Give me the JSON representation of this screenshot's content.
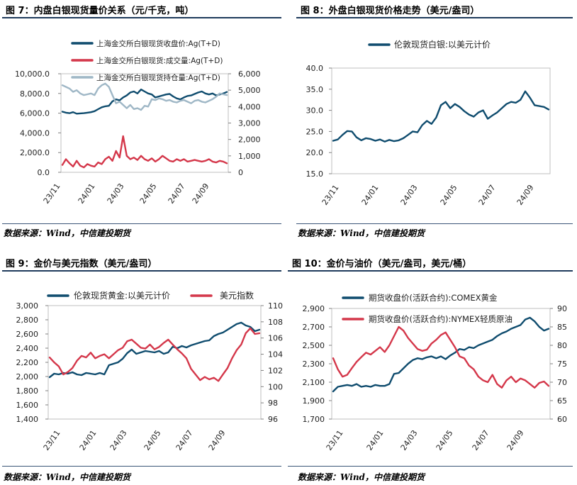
{
  "panels": [
    {
      "title": "图 7：内盘白银现货量价关系（元/千克，吨）",
      "source": "数据来源：Wind，中信建投期货"
    },
    {
      "title": "图 8：外盘白银现货价格走势（美元/盎司）",
      "source": "数据来源：Wind，中信建投期货"
    },
    {
      "title": "图 9：金价与美元指数（美元/盎司）",
      "source": "数据来源：Wind，中信建投期货"
    },
    {
      "title": "图 10：金价与油价（美元/盎司，美元/桶）",
      "source": "数据来源：Wind，中信建投期货"
    }
  ],
  "colors": {
    "navy": "#0f4c6e",
    "red": "#d4374a",
    "gray": "#9fb7c6",
    "rule": "#1f3b5c"
  },
  "chart_data": [
    {
      "type": "line",
      "title": "图 7：内盘白银现货量价关系（元/千克，吨）",
      "x_ticks": [
        "23/11",
        "24/01",
        "24/03",
        "24/05",
        "24/07",
        "24/09"
      ],
      "y_left": {
        "range": [
          0,
          10000
        ],
        "ticks": [
          "0.0",
          "2,000.0",
          "4,000.0",
          "6,000.0",
          "8,000.0",
          "10,000.0"
        ]
      },
      "y_right": {
        "range": [
          0,
          6000
        ],
        "ticks": [
          "0",
          "1,000",
          "2,000",
          "3,000",
          "4,000",
          "5,000",
          "6,000"
        ]
      },
      "series": [
        {
          "name": "上海金交所白银现货收盘价:Ag(T+D)",
          "axis": "left",
          "color": "#0f4c6e",
          "values": [
            6150,
            6050,
            6000,
            6100,
            5950,
            5980,
            6000,
            6050,
            6100,
            6200,
            6400,
            6600,
            6700,
            6750,
            7200,
            7400,
            7300,
            7600,
            7800,
            8100,
            8200,
            8000,
            8400,
            8200,
            8000,
            7900,
            7600,
            7700,
            7800,
            7900,
            7950,
            7700,
            7500,
            7400,
            7600,
            7750,
            7800,
            7950,
            8100,
            8200,
            8000,
            7900,
            8000,
            7800,
            7900,
            8000,
            8150
          ]
        },
        {
          "name": "上海金交所白银现货:成交量:Ag(T+D)",
          "axis": "right",
          "color": "#d4374a",
          "values": [
            450,
            800,
            550,
            350,
            700,
            400,
            300,
            500,
            400,
            350,
            600,
            500,
            800,
            950,
            700,
            1300,
            900,
            2200,
            1000,
            800,
            900,
            750,
            1000,
            800,
            700,
            850,
            650,
            800,
            1000,
            850,
            700,
            650,
            800,
            700,
            800,
            650,
            700,
            750,
            700,
            650,
            700,
            800,
            650,
            600,
            700,
            650,
            550
          ]
        },
        {
          "name": "上海金交所白银现货持仓量:Ag(T+D)",
          "axis": "right",
          "color": "#9fb7c6",
          "values": [
            5300,
            5200,
            5100,
            4900,
            5000,
            4800,
            4700,
            4750,
            4800,
            4700,
            5100,
            5300,
            5400,
            5200,
            4700,
            4200,
            4300,
            4100,
            3900,
            4100,
            3850,
            3900,
            3800,
            4050,
            4000,
            4450,
            4400,
            4500,
            4450,
            4350,
            4400,
            4300,
            4250,
            4350,
            4400,
            4300,
            4200,
            4350,
            4400,
            4300,
            4250,
            4350,
            4450,
            4600,
            4800,
            4750,
            4700
          ]
        }
      ]
    },
    {
      "type": "line",
      "title": "图 8：外盘白银现货价格走势（美元/盎司）",
      "x_ticks": [
        "23/11",
        "24/01",
        "24/03",
        "24/05",
        "24/07",
        "24/09"
      ],
      "y_left": {
        "range": [
          15,
          40
        ],
        "ticks": [
          "15.0",
          "20.0",
          "25.0",
          "30.0",
          "35.0",
          "40.0"
        ]
      },
      "series": [
        {
          "name": "伦敦现货白银:以美元计价",
          "axis": "left",
          "color": "#0f4c6e",
          "values": [
            22.8,
            23.1,
            24.2,
            25.1,
            25.0,
            23.6,
            22.9,
            23.4,
            23.2,
            22.8,
            23.1,
            22.6,
            23.0,
            22.7,
            22.9,
            23.4,
            24.2,
            25.0,
            24.8,
            26.5,
            27.5,
            26.8,
            28.3,
            31.2,
            32.0,
            30.5,
            31.5,
            30.8,
            29.8,
            29.0,
            28.5,
            29.5,
            30.0,
            28.0,
            28.8,
            29.5,
            30.5,
            31.5,
            32.0,
            31.8,
            32.5,
            34.5,
            33.0,
            31.2,
            31.0,
            30.8,
            30.2
          ]
        }
      ]
    },
    {
      "type": "line",
      "title": "图 9：金价与美元指数（美元/盎司）",
      "x_ticks": [
        "23/11",
        "24/01",
        "24/03",
        "24/05",
        "24/07",
        "24/09"
      ],
      "y_left": {
        "range": [
          1400,
          3000
        ],
        "ticks": [
          "1,400",
          "1,600",
          "1,800",
          "2,000",
          "2,200",
          "2,400",
          "2,600",
          "2,800",
          "3,000"
        ]
      },
      "y_right": {
        "range": [
          96,
          110
        ],
        "ticks": [
          "96",
          "98",
          "100",
          "102",
          "104",
          "106",
          "108",
          "110"
        ]
      },
      "series": [
        {
          "name": "伦敦现货黄金:以美元计价",
          "axis": "left",
          "color": "#0f4c6e",
          "values": [
            1990,
            2040,
            2030,
            2050,
            2040,
            2060,
            2030,
            2020,
            2050,
            2040,
            2030,
            2050,
            2030,
            2160,
            2180,
            2200,
            2250,
            2330,
            2380,
            2320,
            2340,
            2360,
            2350,
            2340,
            2360,
            2320,
            2340,
            2420,
            2400,
            2430,
            2410,
            2440,
            2460,
            2480,
            2500,
            2510,
            2570,
            2600,
            2620,
            2660,
            2700,
            2740,
            2760,
            2720,
            2700,
            2640,
            2660
          ]
        },
        {
          "name": "美元指数",
          "axis": "right",
          "color": "#d4374a",
          "values": [
            103.6,
            103.0,
            102.5,
            101.5,
            101.8,
            102.3,
            103.2,
            103.8,
            103.6,
            104.2,
            103.5,
            103.8,
            104.0,
            103.5,
            104.0,
            104.5,
            104.8,
            105.6,
            105.8,
            105.3,
            104.8,
            104.7,
            105.2,
            104.6,
            104.9,
            105.4,
            105.8,
            105.2,
            104.6,
            104.1,
            103.5,
            102.2,
            101.5,
            100.8,
            101.2,
            100.9,
            101.1,
            100.7,
            101.5,
            102.3,
            103.5,
            104.5,
            105.2,
            106.6,
            107.2,
            106.5,
            106.6
          ]
        }
      ]
    },
    {
      "type": "line",
      "title": "图 10：金价与油价（美元/盎司，美元/桶）",
      "x_ticks": [
        "23/11",
        "24/01",
        "24/03",
        "24/05",
        "24/07",
        "24/09"
      ],
      "y_left": {
        "range": [
          1700,
          2900
        ],
        "ticks": [
          "1,700",
          "1,900",
          "2,100",
          "2,300",
          "2,500",
          "2,700",
          "2,900"
        ]
      },
      "y_right": {
        "range": [
          60,
          90
        ],
        "ticks": [
          "60",
          "65",
          "70",
          "75",
          "80",
          "85",
          "90"
        ]
      },
      "series": [
        {
          "name": "期货收盘价(活跃合约):COMEX黄金",
          "axis": "left",
          "color": "#0f4c6e",
          "values": [
            2000,
            2050,
            2060,
            2070,
            2060,
            2080,
            2050,
            2060,
            2050,
            2070,
            2060,
            2060,
            2080,
            2190,
            2200,
            2250,
            2300,
            2340,
            2360,
            2350,
            2370,
            2380,
            2360,
            2380,
            2350,
            2390,
            2420,
            2460,
            2450,
            2480,
            2470,
            2500,
            2520,
            2540,
            2560,
            2600,
            2630,
            2650,
            2680,
            2700,
            2720,
            2780,
            2800,
            2760,
            2700,
            2660,
            2680
          ]
        },
        {
          "name": "期货收盘价(活跃合约):NYMEX轻质原油",
          "axis": "right",
          "color": "#d4374a",
          "values": [
            76.5,
            73.5,
            71.5,
            72.0,
            73.8,
            75.5,
            76.8,
            78.0,
            77.5,
            78.5,
            79.5,
            78.2,
            80.0,
            82.5,
            85.0,
            84.0,
            82.0,
            80.5,
            79.0,
            78.5,
            78.8,
            80.5,
            81.5,
            82.8,
            83.5,
            81.5,
            79.5,
            77.0,
            76.5,
            74.5,
            73.5,
            71.5,
            70.5,
            70.0,
            72.0,
            69.5,
            68.5,
            70.5,
            71.5,
            70.0,
            71.0,
            70.5,
            69.5,
            68.5,
            69.8,
            70.2,
            69.0
          ]
        }
      ]
    }
  ]
}
